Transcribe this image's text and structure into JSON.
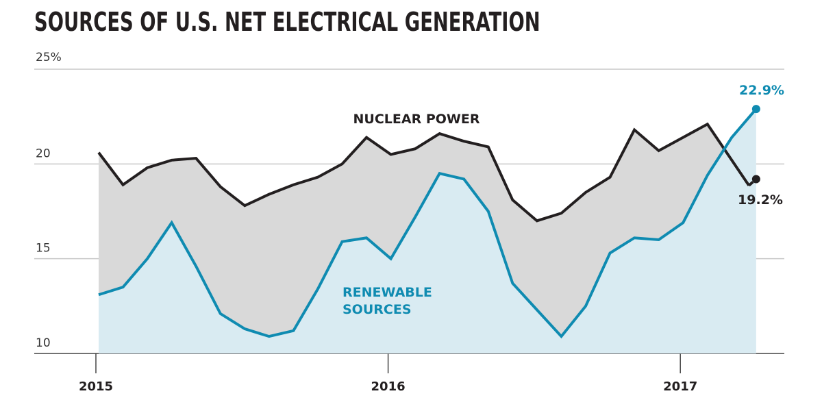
{
  "title": "SOURCES OF U.S. NET ELECTRICAL GENERATION",
  "chart_data": {
    "type": "area",
    "title": "SOURCES OF U.S. NET ELECTRICAL GENERATION",
    "xlabel": "",
    "ylabel": "",
    "ylim": [
      10,
      25
    ],
    "yticks": [
      {
        "value": 25,
        "label": "25%"
      },
      {
        "value": 20,
        "label": "20"
      },
      {
        "value": 15,
        "label": "15"
      },
      {
        "value": 10,
        "label": "10"
      }
    ],
    "xticks": [
      {
        "index": 0,
        "label": "2015"
      },
      {
        "index": 12,
        "label": "2016"
      },
      {
        "index": 24,
        "label": "2017"
      }
    ],
    "x": [
      "2015-01",
      "2015-02",
      "2015-03",
      "2015-04",
      "2015-05",
      "2015-06",
      "2015-07",
      "2015-08",
      "2015-09",
      "2015-10",
      "2015-11",
      "2015-12",
      "2016-01",
      "2016-02",
      "2016-03",
      "2016-04",
      "2016-05",
      "2016-06",
      "2016-07",
      "2016-08",
      "2016-09",
      "2016-10",
      "2016-11",
      "2016-12",
      "2017-01",
      "2017-02",
      "2017-03",
      "2017-04"
    ],
    "grid": true,
    "series": [
      {
        "name": "NUCLEAR POWER",
        "color": "#231f20",
        "fill": "#d9d9d9",
        "values": [
          20.6,
          18.9,
          19.8,
          20.2,
          20.3,
          18.8,
          17.8,
          18.4,
          18.9,
          19.3,
          20.0,
          21.4,
          20.5,
          20.8,
          21.6,
          21.2,
          20.9,
          18.1,
          17.0,
          17.4,
          18.5,
          19.3,
          21.8,
          20.7,
          21.4,
          22.1,
          20.2,
          19.2
        ],
        "end_label": "19.2%"
      },
      {
        "name": "RENEWABLE SOURCES",
        "color": "#0f8bb1",
        "fill": "#d9ebf2",
        "values": [
          13.1,
          13.5,
          15.0,
          16.9,
          14.6,
          12.1,
          11.3,
          10.9,
          11.2,
          13.4,
          15.9,
          16.1,
          15.0,
          17.2,
          19.5,
          19.2,
          17.5,
          13.7,
          12.3,
          10.9,
          12.5,
          15.3,
          16.1,
          16.0,
          16.9,
          19.4,
          21.4,
          22.9
        ],
        "end_label": "22.9%"
      }
    ],
    "labels": {
      "nuclear": "NUCLEAR POWER",
      "renewable_line1": "RENEWABLE",
      "renewable_line2": "SOURCES"
    }
  }
}
